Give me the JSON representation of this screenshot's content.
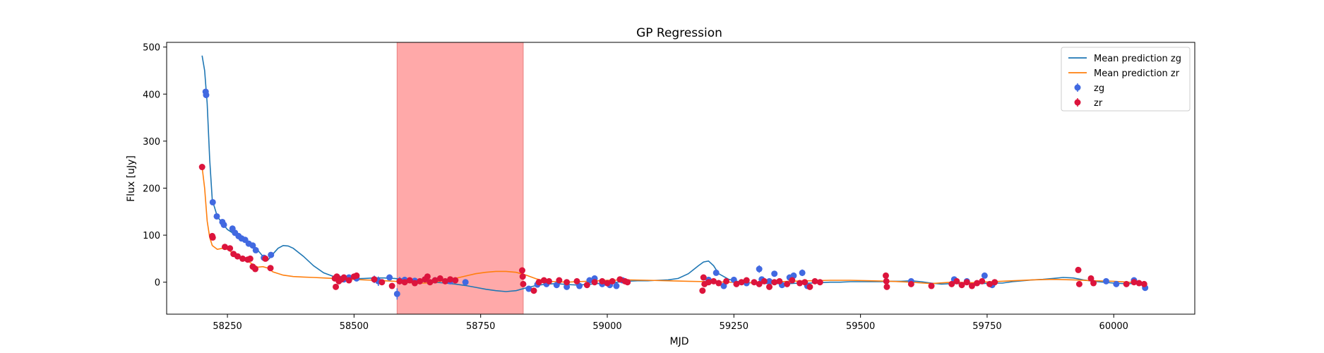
{
  "chart_data": {
    "type": "scatter",
    "title": "GP Regression",
    "xlabel": "MJD",
    "ylabel": "Flux [uJy]",
    "xlim": [
      58130,
      60160
    ],
    "ylim": [
      -68,
      510
    ],
    "xticks": [
      58250,
      58500,
      58750,
      59000,
      59250,
      59500,
      59750,
      60000
    ],
    "yticks": [
      0,
      100,
      200,
      300,
      400,
      500
    ],
    "grid": false,
    "legend_position": "top-right",
    "shaded_region": {
      "x0": 58585,
      "x1": 58834,
      "color": "#ff9a9a"
    },
    "series": [
      {
        "name": "Mean prediction zg",
        "kind": "line",
        "color": "#1f77b4",
        "x": [
          58200,
          58205,
          58210,
          58215,
          58220,
          58230,
          58240,
          58250,
          58260,
          58270,
          58280,
          58290,
          58300,
          58310,
          58320,
          58330,
          58340,
          58350,
          58360,
          58370,
          58380,
          58400,
          58420,
          58440,
          58460,
          58480,
          58500,
          58520,
          58540,
          58560,
          58580,
          58600,
          58620,
          58640,
          58660,
          58680,
          58700,
          58720,
          58740,
          58760,
          58780,
          58800,
          58820,
          58840,
          58860,
          58880,
          58900,
          58920,
          58940,
          58960,
          58980,
          59000,
          59020,
          59040,
          59060,
          59080,
          59100,
          59120,
          59140,
          59160,
          59180,
          59190,
          59200,
          59210,
          59220,
          59240,
          59260,
          59280,
          59300,
          59320,
          59340,
          59360,
          59380,
          59400,
          59420,
          59440,
          59460,
          59480,
          59500,
          59520,
          59540,
          59560,
          59580,
          59600,
          59620,
          59640,
          59660,
          59680,
          59700,
          59720,
          59740,
          59760,
          59780,
          59800,
          59820,
          59840,
          59860,
          59880,
          59900,
          59920,
          59940,
          59960,
          59980,
          60000,
          60020,
          60040,
          60060
        ],
        "y": [
          482,
          450,
          380,
          260,
          175,
          140,
          125,
          112,
          105,
          98,
          92,
          86,
          80,
          68,
          55,
          47,
          60,
          72,
          78,
          77,
          72,
          55,
          35,
          20,
          12,
          9,
          7,
          8,
          9,
          9,
          8,
          6,
          4,
          2,
          0,
          -2,
          -4,
          -7,
          -11,
          -15,
          -18,
          -20,
          -18,
          -12,
          -7,
          -4,
          -3,
          -5,
          -6,
          -5,
          -3,
          -1,
          0,
          2,
          3,
          3,
          4,
          5,
          8,
          18,
          35,
          43,
          45,
          35,
          18,
          6,
          1,
          -1,
          -2,
          -3,
          -3,
          -3,
          -2,
          -2,
          -1,
          0,
          0,
          1,
          1,
          1,
          1,
          2,
          2,
          3,
          1,
          -2,
          -4,
          -3,
          -3,
          -3,
          -3,
          -2,
          -2,
          1,
          3,
          5,
          6,
          8,
          10,
          9,
          5,
          2,
          0,
          -2,
          -3,
          -3,
          -3
        ]
      },
      {
        "name": "Mean prediction zr",
        "kind": "line",
        "color": "#ff7f0e",
        "x": [
          58200,
          58205,
          58210,
          58215,
          58220,
          58230,
          58240,
          58250,
          58260,
          58270,
          58280,
          58290,
          58300,
          58310,
          58320,
          58330,
          58340,
          58360,
          58380,
          58400,
          58420,
          58440,
          58460,
          58480,
          58500,
          58520,
          58540,
          58560,
          58580,
          58600,
          58620,
          58640,
          58660,
          58680,
          58700,
          58720,
          58740,
          58760,
          58780,
          58800,
          58820,
          58840,
          58860,
          58880,
          58900,
          58920,
          58940,
          58960,
          58980,
          59000,
          59040,
          59080,
          59120,
          59160,
          59200,
          59240,
          59280,
          59320,
          59360,
          59400,
          59440,
          59480,
          59520,
          59560,
          59600,
          59640,
          59680,
          59720,
          59760,
          59800,
          59840,
          59880,
          59920,
          59960,
          60000,
          60030,
          60060
        ],
        "y": [
          245,
          200,
          130,
          95,
          78,
          70,
          72,
          70,
          62,
          55,
          50,
          45,
          38,
          32,
          33,
          30,
          22,
          15,
          12,
          11,
          10,
          9,
          8,
          7,
          6,
          5,
          4,
          3,
          2,
          0,
          -2,
          -2,
          0,
          4,
          8,
          13,
          18,
          21,
          23,
          23,
          21,
          15,
          7,
          2,
          1,
          0,
          1,
          2,
          3,
          4,
          5,
          4,
          3,
          2,
          1,
          0,
          -1,
          0,
          2,
          3,
          4,
          4,
          3,
          2,
          0,
          -3,
          0,
          -1,
          1,
          3,
          5,
          6,
          5,
          3,
          2,
          0,
          -1
        ]
      },
      {
        "name": "zg",
        "kind": "errorbar-points",
        "color": "#4169e1",
        "points": [
          [
            58207,
            405,
            6
          ],
          [
            58208,
            398,
            6
          ],
          [
            58221,
            170,
            5
          ],
          [
            58229,
            140,
            4
          ],
          [
            58240,
            128,
            4
          ],
          [
            58243,
            122,
            4
          ],
          [
            58260,
            114,
            4
          ],
          [
            58265,
            105,
            4
          ],
          [
            58272,
            98,
            3
          ],
          [
            58278,
            93,
            3
          ],
          [
            58285,
            90,
            3
          ],
          [
            58292,
            82,
            3
          ],
          [
            58300,
            78,
            3
          ],
          [
            58306,
            68,
            3
          ],
          [
            58322,
            52,
            3
          ],
          [
            58336,
            58,
            4
          ],
          [
            58470,
            8,
            4
          ],
          [
            58480,
            6,
            4
          ],
          [
            58490,
            10,
            5
          ],
          [
            58505,
            8,
            5
          ],
          [
            58540,
            6,
            8
          ],
          [
            58548,
            2,
            10
          ],
          [
            58570,
            10,
            5
          ],
          [
            58585,
            -25,
            12
          ],
          [
            58590,
            3,
            8
          ],
          [
            58600,
            5,
            6
          ],
          [
            58620,
            3,
            6
          ],
          [
            58640,
            6,
            5
          ],
          [
            58660,
            4,
            5
          ],
          [
            58690,
            2,
            5
          ],
          [
            58720,
            0,
            5
          ],
          [
            58845,
            -14,
            5
          ],
          [
            58862,
            -5,
            4
          ],
          [
            58880,
            -4,
            4
          ],
          [
            58900,
            -6,
            4
          ],
          [
            58920,
            -10,
            4
          ],
          [
            58945,
            -8,
            4
          ],
          [
            58965,
            4,
            4
          ],
          [
            58975,
            8,
            4
          ],
          [
            58990,
            -4,
            4
          ],
          [
            59005,
            -6,
            4
          ],
          [
            59018,
            -8,
            4
          ],
          [
            59030,
            4,
            4
          ],
          [
            59200,
            5,
            5
          ],
          [
            59215,
            20,
            6
          ],
          [
            59230,
            -8,
            5
          ],
          [
            59250,
            5,
            5
          ],
          [
            59275,
            -2,
            5
          ],
          [
            59300,
            28,
            8
          ],
          [
            59305,
            6,
            6
          ],
          [
            59320,
            2,
            6
          ],
          [
            59330,
            18,
            6
          ],
          [
            59345,
            -6,
            5
          ],
          [
            59360,
            10,
            6
          ],
          [
            59368,
            14,
            6
          ],
          [
            59385,
            20,
            7
          ],
          [
            59395,
            -8,
            5
          ],
          [
            59600,
            2,
            5
          ],
          [
            59685,
            6,
            5
          ],
          [
            59710,
            2,
            5
          ],
          [
            59745,
            14,
            5
          ],
          [
            59760,
            -6,
            5
          ],
          [
            59985,
            2,
            5
          ],
          [
            60005,
            -4,
            5
          ],
          [
            60040,
            4,
            5
          ],
          [
            60062,
            -12,
            5
          ]
        ]
      },
      {
        "name": "zr",
        "kind": "errorbar-points",
        "color": "#dc143c",
        "points": [
          [
            58200,
            245,
            5
          ],
          [
            58220,
            98,
            4
          ],
          [
            58221,
            95,
            4
          ],
          [
            58245,
            75,
            3
          ],
          [
            58255,
            72,
            3
          ],
          [
            58262,
            60,
            3
          ],
          [
            58270,
            55,
            3
          ],
          [
            58280,
            50,
            3
          ],
          [
            58290,
            48,
            3
          ],
          [
            58295,
            50,
            3
          ],
          [
            58300,
            33,
            3
          ],
          [
            58305,
            28,
            3
          ],
          [
            58325,
            50,
            3
          ],
          [
            58335,
            30,
            3
          ],
          [
            58462,
            8,
            4
          ],
          [
            58464,
            -10,
            4
          ],
          [
            58466,
            12,
            4
          ],
          [
            58470,
            2,
            4
          ],
          [
            58475,
            6,
            4
          ],
          [
            58480,
            10,
            4
          ],
          [
            58490,
            4,
            4
          ],
          [
            58500,
            12,
            4
          ],
          [
            58505,
            14,
            4
          ],
          [
            58540,
            6,
            4
          ],
          [
            58555,
            0,
            4
          ],
          [
            58575,
            -8,
            4
          ],
          [
            58590,
            2,
            4
          ],
          [
            58600,
            0,
            4
          ],
          [
            58610,
            4,
            4
          ],
          [
            58620,
            -2,
            4
          ],
          [
            58630,
            2,
            4
          ],
          [
            58640,
            6,
            4
          ],
          [
            58645,
            12,
            5
          ],
          [
            58650,
            0,
            4
          ],
          [
            58660,
            4,
            4
          ],
          [
            58670,
            8,
            4
          ],
          [
            58680,
            2,
            4
          ],
          [
            58690,
            6,
            4
          ],
          [
            58700,
            4,
            4
          ],
          [
            58832,
            25,
            4
          ],
          [
            58833,
            12,
            4
          ],
          [
            58834,
            -4,
            4
          ],
          [
            58855,
            -18,
            4
          ],
          [
            58865,
            0,
            4
          ],
          [
            58875,
            4,
            4
          ],
          [
            58885,
            2,
            4
          ],
          [
            58905,
            4,
            4
          ],
          [
            58920,
            0,
            4
          ],
          [
            58940,
            2,
            4
          ],
          [
            58960,
            -6,
            4
          ],
          [
            58975,
            0,
            4
          ],
          [
            58990,
            2,
            4
          ],
          [
            59000,
            -2,
            4
          ],
          [
            59010,
            2,
            4
          ],
          [
            59025,
            6,
            4
          ],
          [
            59035,
            2,
            4
          ],
          [
            59040,
            0,
            4
          ],
          [
            59188,
            -18,
            5
          ],
          [
            59190,
            10,
            5
          ],
          [
            59192,
            -4,
            5
          ],
          [
            59200,
            0,
            4
          ],
          [
            59210,
            2,
            4
          ],
          [
            59220,
            -2,
            4
          ],
          [
            59235,
            2,
            4
          ],
          [
            59255,
            -4,
            4
          ],
          [
            59265,
            0,
            4
          ],
          [
            59275,
            4,
            4
          ],
          [
            59290,
            0,
            4
          ],
          [
            59300,
            -4,
            4
          ],
          [
            59310,
            2,
            4
          ],
          [
            59320,
            -10,
            4
          ],
          [
            59330,
            0,
            4
          ],
          [
            59340,
            2,
            4
          ],
          [
            59355,
            -4,
            4
          ],
          [
            59365,
            4,
            4
          ],
          [
            59380,
            -2,
            4
          ],
          [
            59390,
            0,
            4
          ],
          [
            59400,
            -10,
            4
          ],
          [
            59410,
            2,
            4
          ],
          [
            59420,
            0,
            4
          ],
          [
            59550,
            14,
            4
          ],
          [
            59551,
            2,
            4
          ],
          [
            59552,
            -10,
            4
          ],
          [
            59600,
            -4,
            4
          ],
          [
            59640,
            -8,
            4
          ],
          [
            59680,
            -4,
            4
          ],
          [
            59690,
            2,
            4
          ],
          [
            59700,
            -6,
            4
          ],
          [
            59710,
            0,
            4
          ],
          [
            59720,
            -8,
            4
          ],
          [
            59730,
            -2,
            4
          ],
          [
            59740,
            2,
            4
          ],
          [
            59755,
            -4,
            4
          ],
          [
            59765,
            0,
            4
          ],
          [
            59930,
            26,
            5
          ],
          [
            59932,
            -4,
            4
          ],
          [
            59955,
            8,
            4
          ],
          [
            59960,
            -2,
            4
          ],
          [
            60025,
            -4,
            4
          ],
          [
            60040,
            0,
            4
          ],
          [
            60050,
            -2,
            4
          ],
          [
            60060,
            -4,
            4
          ]
        ]
      }
    ]
  }
}
